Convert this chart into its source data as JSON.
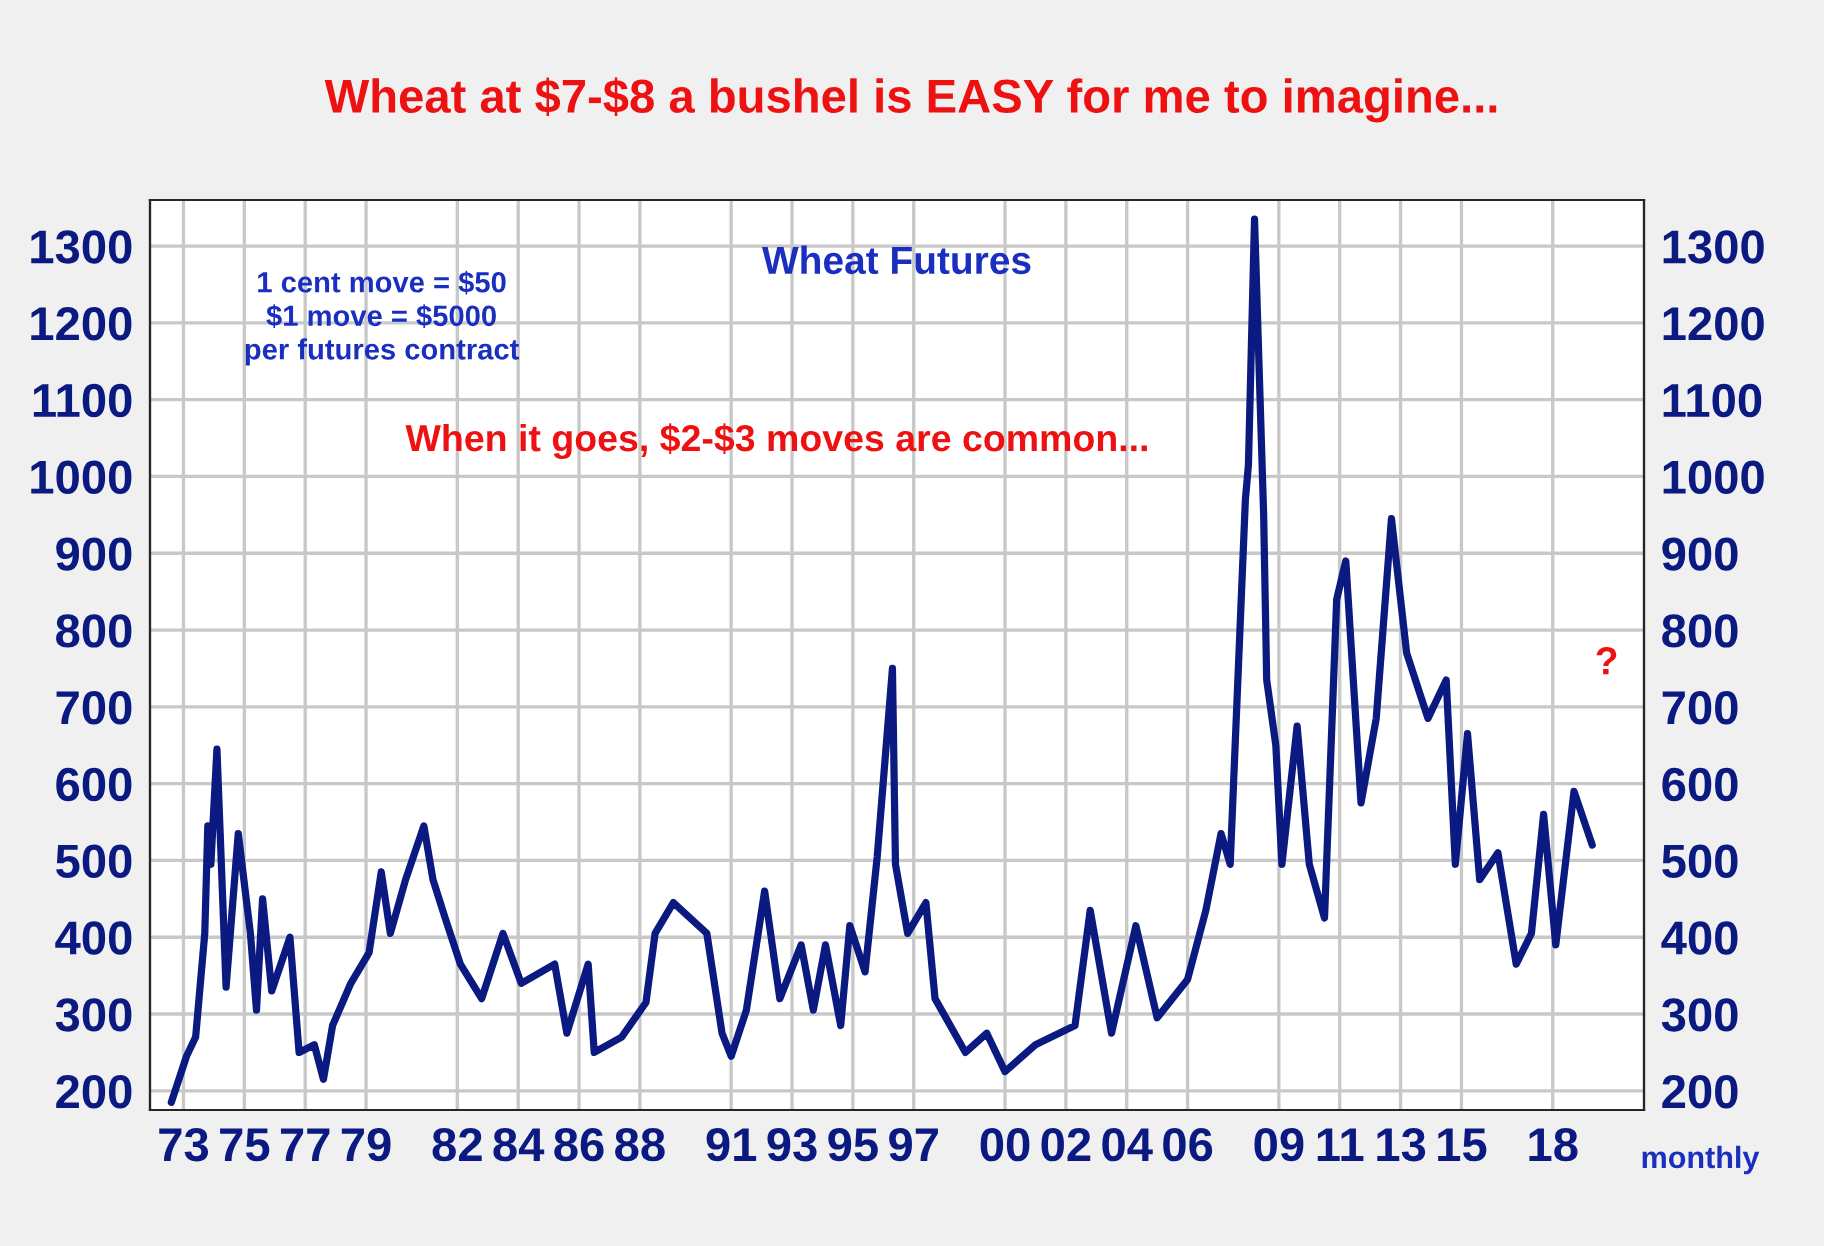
{
  "chart_data": {
    "type": "line",
    "title": "Wheat at $7-$8 a bushel is EASY for me to imagine...",
    "annotations": [
      "Wheat Futures",
      "1 cent move = $50\n$1 move = $5000\nper futures contract",
      "When it goes, $2-$3 moves are common...",
      "?",
      "monthly"
    ],
    "series": [
      {
        "color": "#0a1a80",
        "x": [
          1972.6,
          1973.1,
          1973.4,
          1973.7,
          1973.8,
          1973.9,
          1974.1,
          1974.4,
          1974.8,
          1975.2,
          1975.4,
          1975.6,
          1975.9,
          1976.5,
          1976.8,
          1977.3,
          1977.6,
          1977.9,
          1978.5,
          1979.1,
          1979.5,
          1979.8,
          1980.3,
          1980.9,
          1981.2,
          1981.6,
          1982.1,
          1982.8,
          1983.5,
          1984.1,
          1985.2,
          1985.6,
          1986.3,
          1986.5,
          1987.4,
          1988.2,
          1988.5,
          1989.1,
          1990.2,
          1990.7,
          1991.0,
          1991.5,
          1992.1,
          1992.6,
          1993.3,
          1993.7,
          1994.1,
          1994.6,
          1994.9,
          1995.4,
          1995.8,
          1996.3,
          1996.4,
          1996.8,
          1997.4,
          1997.7,
          1998.7,
          1999.4,
          2000.0,
          2001.0,
          2002.3,
          2002.8,
          2003.5,
          2004.3,
          2005.0,
          2006.0,
          2006.6,
          2007.1,
          2007.4,
          2007.9,
          2008.0,
          2008.2,
          2008.5,
          2008.6,
          2008.9,
          2009.1,
          2009.6,
          2010.0,
          2010.5,
          2010.9,
          2011.2,
          2011.7,
          2012.2,
          2012.7,
          2013.2,
          2013.9,
          2014.5,
          2014.8,
          2015.2,
          2015.6,
          2016.2,
          2016.8,
          2017.3,
          2017.7,
          2018.1,
          2018.7,
          2019.3
        ],
        "values": [
          185,
          245,
          270,
          405,
          545,
          495,
          645,
          335,
          535,
          405,
          305,
          450,
          330,
          400,
          250,
          260,
          215,
          285,
          340,
          380,
          485,
          405,
          475,
          545,
          475,
          425,
          365,
          320,
          405,
          340,
          365,
          275,
          365,
          250,
          270,
          315,
          405,
          445,
          405,
          275,
          245,
          305,
          460,
          320,
          390,
          305,
          390,
          285,
          415,
          355,
          505,
          750,
          495,
          405,
          445,
          320,
          250,
          275,
          225,
          260,
          285,
          435,
          275,
          415,
          295,
          345,
          435,
          535,
          495,
          970,
          1015,
          1335,
          950,
          735,
          650,
          495,
          675,
          495,
          425,
          840,
          890,
          575,
          685,
          945,
          770,
          685,
          735,
          495,
          665,
          475,
          510,
          365,
          405,
          560,
          390,
          590,
          520
        ]
      }
    ],
    "xlim": [
      1971.9,
      2021.0
    ],
    "xticks": [
      {
        "value": 1973,
        "label": "73"
      },
      {
        "value": 1975,
        "label": "75"
      },
      {
        "value": 1977,
        "label": "77"
      },
      {
        "value": 1979,
        "label": "79"
      },
      {
        "value": 1982,
        "label": "82"
      },
      {
        "value": 1984,
        "label": "84"
      },
      {
        "value": 1986,
        "label": "86"
      },
      {
        "value": 1988,
        "label": "88"
      },
      {
        "value": 1991,
        "label": "91"
      },
      {
        "value": 1993,
        "label": "93"
      },
      {
        "value": 1995,
        "label": "95"
      },
      {
        "value": 1997,
        "label": "97"
      },
      {
        "value": 2000,
        "label": "00"
      },
      {
        "value": 2002,
        "label": "02"
      },
      {
        "value": 2004,
        "label": "04"
      },
      {
        "value": 2006,
        "label": "06"
      },
      {
        "value": 2009,
        "label": "09"
      },
      {
        "value": 2011,
        "label": "11"
      },
      {
        "value": 2013,
        "label": "13"
      },
      {
        "value": 2015,
        "label": "15"
      },
      {
        "value": 2018,
        "label": "18"
      }
    ],
    "ylim": [
      175,
      1360
    ],
    "yticks": [
      200,
      300,
      400,
      500,
      600,
      700,
      800,
      900,
      1000,
      1100,
      1200,
      1300
    ],
    "y2lim": [
      175,
      1360
    ],
    "y2ticks": [
      200,
      300,
      400,
      500,
      600,
      700,
      800,
      900,
      1000,
      1100,
      1200,
      1300
    ],
    "grid": true,
    "line_style": "solid",
    "marker": "none"
  }
}
